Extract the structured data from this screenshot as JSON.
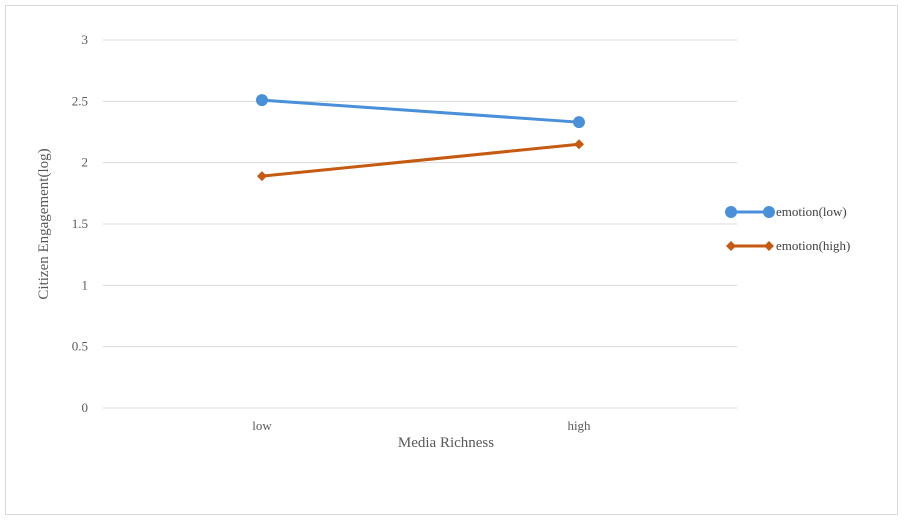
{
  "chart_data": {
    "type": "line",
    "categories": [
      "low",
      "high"
    ],
    "series": [
      {
        "name": "emotion(low)",
        "values": [
          2.51,
          2.33
        ],
        "color": "#4a90d9",
        "marker": "circle"
      },
      {
        "name": "emotion(high)",
        "values": [
          1.89,
          2.15
        ],
        "color": "#c55a11",
        "marker": "diamond"
      }
    ],
    "xlabel": "Media Richness",
    "ylabel": "Citizen Engagement(log)",
    "ylim": [
      0,
      3
    ],
    "yticks": [
      "0",
      "0.5",
      "1",
      "1.5",
      "2",
      "2.5",
      "3"
    ],
    "grid": true,
    "legend_position": "right"
  }
}
